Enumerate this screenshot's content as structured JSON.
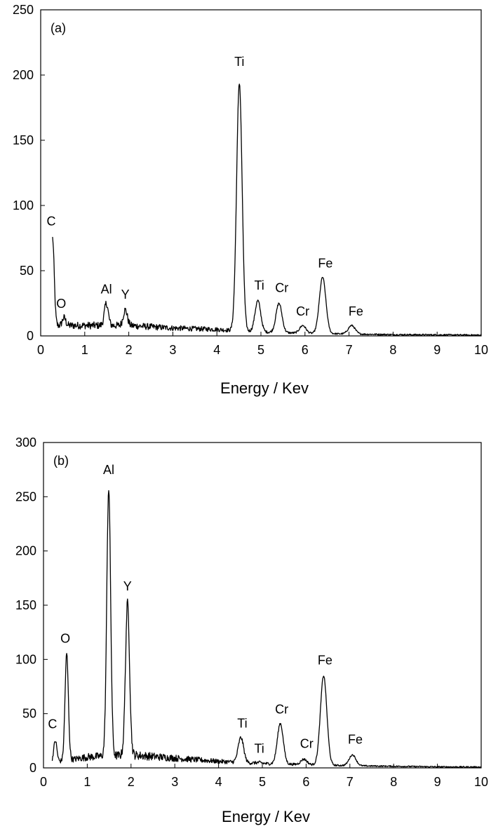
{
  "chart_data": [
    {
      "type": "line",
      "panel_label": "(a)",
      "xlabel": "Energy / Kev",
      "ylabel": "",
      "xlim": [
        0,
        10
      ],
      "ylim": [
        0,
        250
      ],
      "x_ticks": [
        0,
        1,
        2,
        3,
        4,
        5,
        6,
        7,
        8,
        9,
        10
      ],
      "y_ticks": [
        0,
        50,
        100,
        150,
        200,
        250
      ],
      "grid": false,
      "baseline": [
        [
          0.27,
          8
        ],
        [
          1.0,
          8
        ],
        [
          2.0,
          8
        ],
        [
          3.0,
          6
        ],
        [
          4.0,
          5
        ],
        [
          4.4,
          4
        ],
        [
          5.0,
          3
        ],
        [
          6.0,
          2
        ],
        [
          7.0,
          1.5
        ],
        [
          8.0,
          1
        ],
        [
          9.0,
          0.8
        ],
        [
          10.0,
          0.6
        ]
      ],
      "peaks": [
        {
          "label": "C",
          "x": 0.27,
          "y": 75
        },
        {
          "label": "O",
          "x": 0.53,
          "y": 14
        },
        {
          "label": "Al",
          "x": 1.49,
          "y": 25
        },
        {
          "label": "Y",
          "x": 1.92,
          "y": 20
        },
        {
          "label": "Ti",
          "x": 4.51,
          "y": 194
        },
        {
          "label": "Ti",
          "x": 4.93,
          "y": 27
        },
        {
          "label": "Cr",
          "x": 5.41,
          "y": 25
        },
        {
          "label": "Cr",
          "x": 5.95,
          "y": 8
        },
        {
          "label": "Fe",
          "x": 6.4,
          "y": 45
        },
        {
          "label": "Fe",
          "x": 7.06,
          "y": 8
        }
      ]
    },
    {
      "type": "line",
      "panel_label": "(b)",
      "xlabel": "Energy / Kev",
      "ylabel": "",
      "xlim": [
        0,
        10
      ],
      "ylim": [
        0,
        300
      ],
      "x_ticks": [
        0,
        1,
        2,
        3,
        4,
        5,
        6,
        7,
        8,
        9,
        10
      ],
      "y_ticks": [
        0,
        50,
        100,
        150,
        200,
        250,
        300
      ],
      "grid": false,
      "baseline": [
        [
          0.2,
          5
        ],
        [
          0.7,
          8
        ],
        [
          1.0,
          10
        ],
        [
          2.0,
          12
        ],
        [
          3.0,
          9
        ],
        [
          4.0,
          6
        ],
        [
          5.0,
          4
        ],
        [
          6.0,
          3
        ],
        [
          7.0,
          2
        ],
        [
          8.0,
          1.5
        ],
        [
          9.0,
          1
        ],
        [
          10.0,
          0.8
        ]
      ],
      "peaks": [
        {
          "label": "C",
          "x": 0.27,
          "y": 25
        },
        {
          "label": "O",
          "x": 0.53,
          "y": 105
        },
        {
          "label": "Al",
          "x": 1.49,
          "y": 258
        },
        {
          "label": "Y",
          "x": 1.92,
          "y": 152
        },
        {
          "label": "Ti",
          "x": 4.51,
          "y": 28
        },
        {
          "label": "Ti",
          "x": 4.93,
          "y": 5
        },
        {
          "label": "Cr",
          "x": 5.41,
          "y": 41
        },
        {
          "label": "Cr",
          "x": 5.95,
          "y": 8
        },
        {
          "label": "Fe",
          "x": 6.4,
          "y": 85
        },
        {
          "label": "Fe",
          "x": 7.06,
          "y": 12
        }
      ]
    }
  ]
}
